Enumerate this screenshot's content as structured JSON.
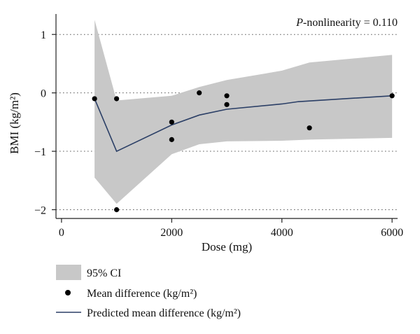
{
  "chart_data": {
    "type": "line",
    "annotation": {
      "italic": "P",
      "rest": "-nonlinearity = 0.110"
    },
    "xlabel": "Dose (mg)",
    "ylabel": "BMI (kg/m²)",
    "xlim": [
      -100,
      6100
    ],
    "ylim": [
      -2.15,
      1.35
    ],
    "xticks": [
      0,
      2000,
      4000,
      6000
    ],
    "xtick_labels": [
      "0",
      "2000",
      "4000",
      "6000"
    ],
    "yticks": [
      1,
      0,
      -1,
      -2
    ],
    "ytick_labels": [
      "1",
      "0",
      "−1",
      "−2"
    ],
    "grid": "horizontal dotted at y ticks",
    "ci_band": {
      "x": [
        600,
        1000,
        2000,
        2500,
        3000,
        4000,
        4500,
        6000
      ],
      "upper": [
        1.25,
        -0.13,
        -0.05,
        0.1,
        0.22,
        0.38,
        0.52,
        0.65
      ],
      "lower": [
        -1.45,
        -1.9,
        -1.05,
        -0.88,
        -0.83,
        -0.82,
        -0.8,
        -0.77
      ]
    },
    "series": [
      {
        "name": "Predicted mean difference (kg/m²)",
        "x": [
          600,
          1000,
          2000,
          2500,
          3000,
          4000,
          4300,
          6000
        ],
        "y": [
          -0.1,
          -1.0,
          -0.55,
          -0.38,
          -0.28,
          -0.19,
          -0.15,
          -0.05
        ]
      },
      {
        "name": "Mean difference (kg/m²)",
        "x": [
          600,
          1000,
          1000,
          2000,
          2000,
          2500,
          3000,
          3000,
          4500,
          6000
        ],
        "y": [
          -0.1,
          -0.1,
          -2.0,
          -0.5,
          -0.8,
          0.0,
          -0.05,
          -0.2,
          -0.6,
          -0.05
        ]
      }
    ],
    "legend": {
      "placement": "below plot",
      "items": [
        "95% CI",
        "Mean difference (kg/m²)",
        "Predicted mean difference (kg/m²)"
      ]
    },
    "colors": {
      "ci_fill": "#c8c8c8",
      "line": "#2b3f66",
      "points": "#000000",
      "axis": "#222222",
      "grid": "#555555"
    }
  }
}
